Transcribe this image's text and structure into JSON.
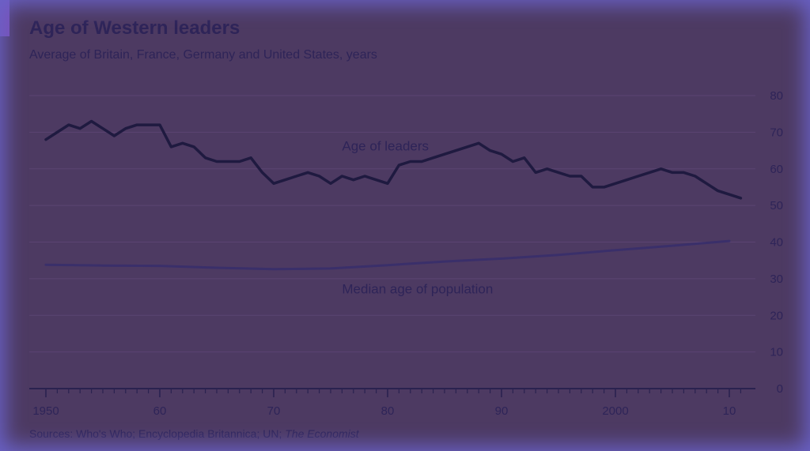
{
  "chart_data": {
    "type": "line",
    "title": "Age of Western leaders",
    "subtitle": "Average of Britain, France, Germany and United States, years",
    "xlabel": "",
    "ylabel": "",
    "xlim": [
      1950,
      2011
    ],
    "ylim": [
      0,
      80
    ],
    "x_ticks": [
      1950,
      1960,
      1970,
      1980,
      1990,
      2000,
      2010
    ],
    "x_tick_labels": [
      "1950",
      "60",
      "70",
      "80",
      "90",
      "2000",
      "10"
    ],
    "y_ticks": [
      0,
      10,
      20,
      30,
      40,
      50,
      60,
      70,
      80
    ],
    "y_tick_labels": [
      "0",
      "10",
      "20",
      "30",
      "40",
      "50",
      "60",
      "70",
      "80"
    ],
    "y_axis_side": "right",
    "grid": true,
    "series": [
      {
        "name": "Age of leaders",
        "color": "#1f1a40",
        "x": [
          1950,
          1951,
          1952,
          1953,
          1954,
          1955,
          1956,
          1957,
          1958,
          1959,
          1960,
          1961,
          1962,
          1963,
          1964,
          1965,
          1966,
          1967,
          1968,
          1969,
          1970,
          1971,
          1972,
          1973,
          1974,
          1975,
          1976,
          1977,
          1978,
          1979,
          1980,
          1981,
          1982,
          1983,
          1984,
          1985,
          1986,
          1987,
          1988,
          1989,
          1990,
          1991,
          1992,
          1993,
          1994,
          1995,
          1996,
          1997,
          1998,
          1999,
          2000,
          2001,
          2002,
          2003,
          2004,
          2005,
          2006,
          2007,
          2008,
          2009,
          2010,
          2011
        ],
        "y": [
          68,
          70,
          72,
          71,
          73,
          71,
          69,
          71,
          72,
          72,
          72,
          66,
          67,
          66,
          63,
          62,
          62,
          62,
          63,
          59,
          56,
          57,
          58,
          59,
          58,
          56,
          58,
          57,
          58,
          57,
          56,
          61,
          62,
          62,
          63,
          64,
          65,
          66,
          67,
          65,
          64,
          62,
          63,
          59,
          60,
          59,
          58,
          58,
          55,
          55,
          56,
          57,
          58,
          59,
          60,
          59,
          59,
          58,
          56,
          54,
          53,
          52
        ]
      },
      {
        "name": "Median age of population",
        "color": "#3a2f6a",
        "x": [
          1950,
          1955,
          1960,
          1965,
          1970,
          1975,
          1980,
          1985,
          1990,
          1995,
          2000,
          2005,
          2010
        ],
        "y": [
          33.8,
          33.6,
          33.5,
          33.0,
          32.6,
          32.8,
          33.7,
          34.7,
          35.5,
          36.5,
          37.8,
          39.0,
          40.3
        ]
      }
    ],
    "annotations": [
      {
        "text": "Age of leaders",
        "x": 1976,
        "y": 65
      },
      {
        "text": "Median age of population",
        "x": 1976,
        "y": 26
      }
    ]
  },
  "source": {
    "text": "Sources: Who's Who; Encyclopedia Britannica; UN; ",
    "italic": "The Economist"
  },
  "colors": {
    "background": "#4d3a62",
    "text": "#2e2458",
    "grid": "#5b4472",
    "axis": "#2a2250",
    "glow": "#6a62c8"
  }
}
